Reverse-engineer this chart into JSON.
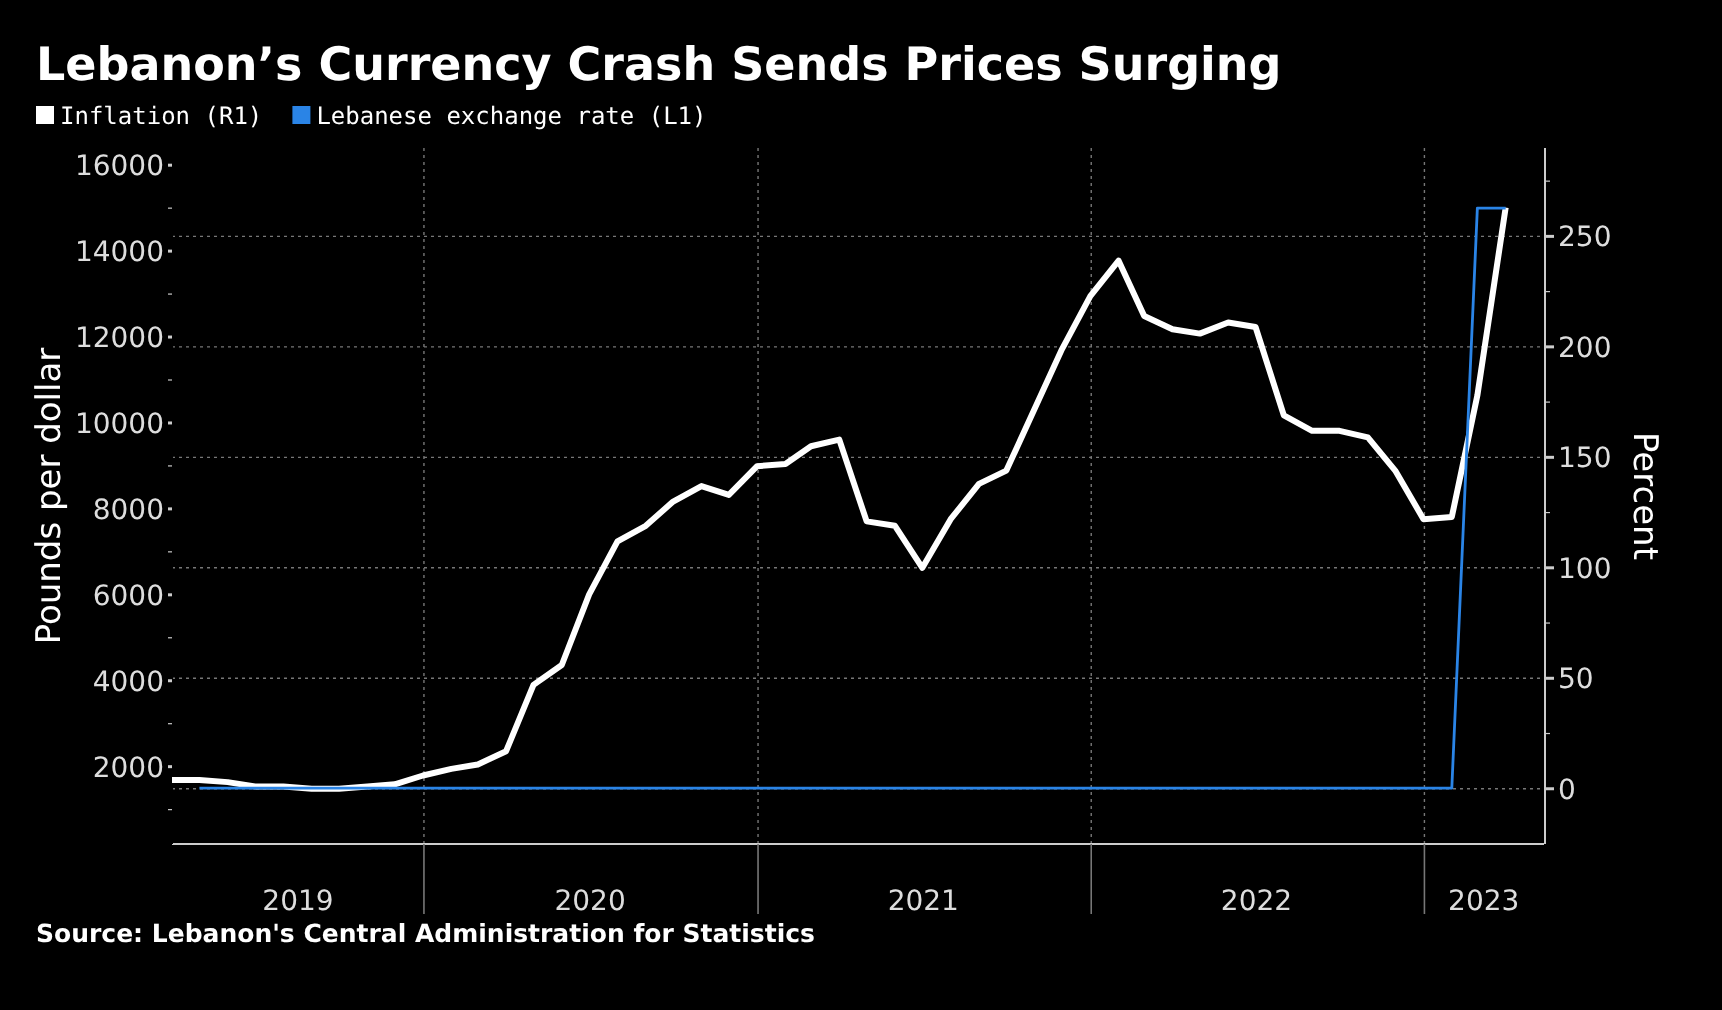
{
  "chart_data": {
    "type": "line",
    "title": "Lebanon’s Currency Crash Sends Prices Surging",
    "ylabel": "Pounds per dollar",
    "y2label": "Percent",
    "legend": "top left",
    "grid": true,
    "annotations": [
      "Source: Lebanon's Central Administration for Statistics"
    ],
    "xlim": [
      "2019-03-31",
      "2023-05-12"
    ],
    "xticks": [
      {
        "value": "2019-08-16",
        "label": "2019"
      },
      {
        "value": "2020-01-01",
        "label": null
      },
      {
        "value": "2020-07-01",
        "label": "2020"
      },
      {
        "value": "2021-01-01",
        "label": null
      },
      {
        "value": "2021-07-01",
        "label": "2021"
      },
      {
        "value": "2022-01-01",
        "label": null
      },
      {
        "value": "2022-07-01",
        "label": "2022"
      },
      {
        "value": "2023-01-01",
        "label": null
      },
      {
        "value": "2023-03-07",
        "label": "2023"
      }
    ],
    "ylim": [
      200,
      16400
    ],
    "yticks": [
      {
        "value": 1000,
        "label": null
      },
      2000,
      {
        "value": 3000,
        "label": null
      },
      4000,
      {
        "value": 5000,
        "label": null
      },
      6000,
      {
        "value": 7000,
        "label": null
      },
      8000,
      {
        "value": 9000,
        "label": null
      },
      10000,
      {
        "value": 11000,
        "label": null
      },
      12000,
      {
        "value": 13000,
        "label": null
      },
      14000,
      {
        "value": 15000,
        "label": null
      },
      16000
    ],
    "y2lim": [
      -25,
      290
    ],
    "y2ticks": [
      0,
      {
        "value": 25,
        "label": null
      },
      50,
      {
        "value": 75,
        "label": null
      },
      100,
      {
        "value": 125,
        "label": null
      },
      150,
      {
        "value": 175,
        "label": null
      },
      200,
      {
        "value": 225,
        "label": null
      },
      250,
      {
        "value": 275,
        "label": null
      }
    ],
    "series": [
      {
        "name": "Inflation (R1)",
        "color": "#ffffff",
        "axis": "y2",
        "x": [
          "2019-03-31",
          "2019-04-30",
          "2019-05-31",
          "2019-06-30",
          "2019-07-31",
          "2019-08-31",
          "2019-09-30",
          "2019-10-31",
          "2019-11-30",
          "2019-12-31",
          "2020-01-31",
          "2020-02-29",
          "2020-03-31",
          "2020-04-30",
          "2020-05-31",
          "2020-06-30",
          "2020-07-31",
          "2020-08-31",
          "2020-09-30",
          "2020-10-31",
          "2020-11-30",
          "2020-12-31",
          "2021-01-31",
          "2021-02-28",
          "2021-03-31",
          "2021-04-30",
          "2021-05-31",
          "2021-06-30",
          "2021-07-31",
          "2021-08-31",
          "2021-09-30",
          "2021-10-31",
          "2021-11-30",
          "2021-12-31",
          "2022-01-31",
          "2022-02-28",
          "2022-03-31",
          "2022-04-30",
          "2022-05-31",
          "2022-06-30",
          "2022-07-31",
          "2022-08-31",
          "2022-09-30",
          "2022-10-31",
          "2022-11-30",
          "2022-12-31",
          "2023-01-31",
          "2023-02-28",
          "2023-03-31"
        ],
        "values": [
          4,
          4,
          3,
          1,
          1,
          0,
          0,
          1,
          2,
          6,
          9,
          11,
          17,
          47,
          56,
          88,
          112,
          119,
          130,
          137,
          133,
          146,
          147,
          155,
          158,
          121,
          119,
          100,
          122,
          138,
          144,
          172,
          199,
          223,
          239,
          214,
          208,
          206,
          211,
          209,
          169,
          162,
          162,
          159,
          144,
          122,
          123,
          178,
          263
        ]
      },
      {
        "name": "Lebanese exchange rate (L1)",
        "color": "#2a84e6",
        "axis": "y",
        "x": [
          "2019-04-30",
          "2023-01-31",
          "2023-02-28",
          "2023-03-31"
        ],
        "values": [
          1500,
          1500,
          15000,
          15000
        ]
      }
    ]
  }
}
